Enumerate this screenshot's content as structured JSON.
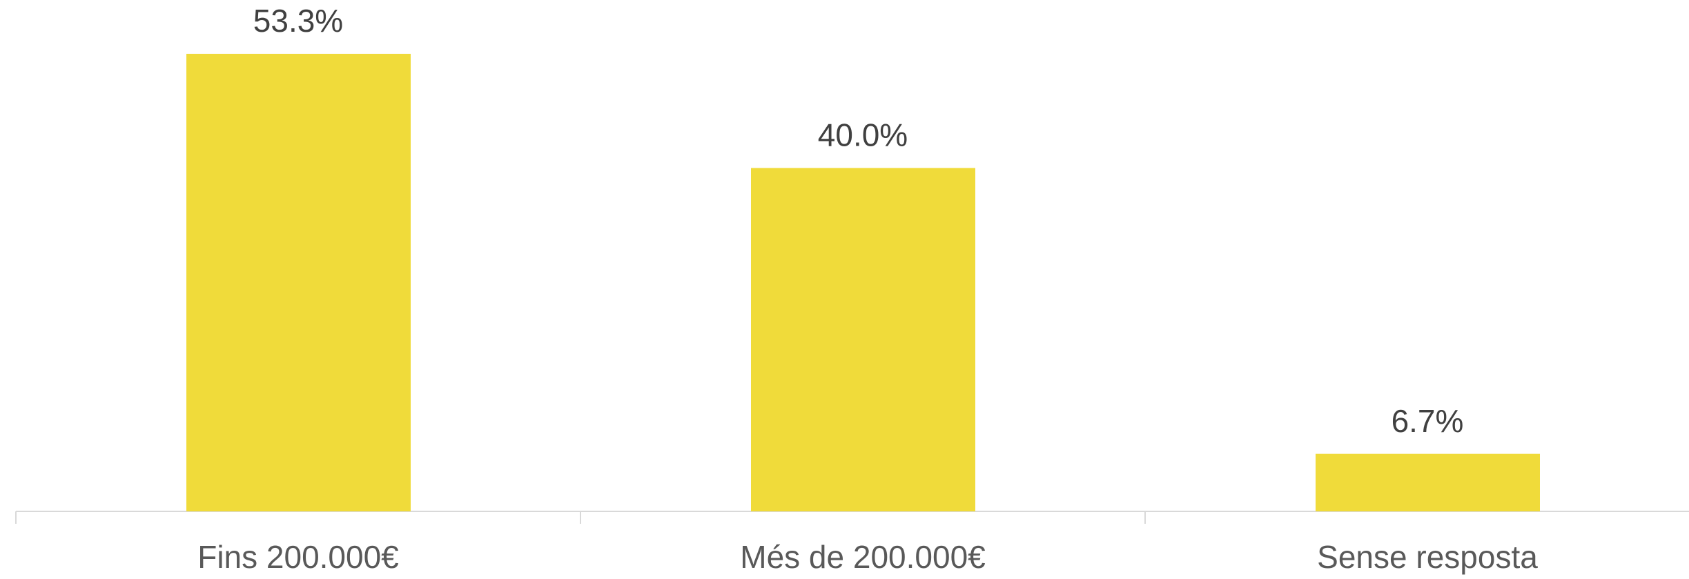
{
  "chart_data": {
    "type": "bar",
    "categories": [
      "Fins 200.000€",
      "Més de 200.000€",
      "Sense resposta"
    ],
    "values": [
      53.3,
      40.0,
      6.7
    ],
    "value_labels": [
      "53.3%",
      "40.0%",
      "6.7%"
    ],
    "color": "#f0db3a"
  }
}
